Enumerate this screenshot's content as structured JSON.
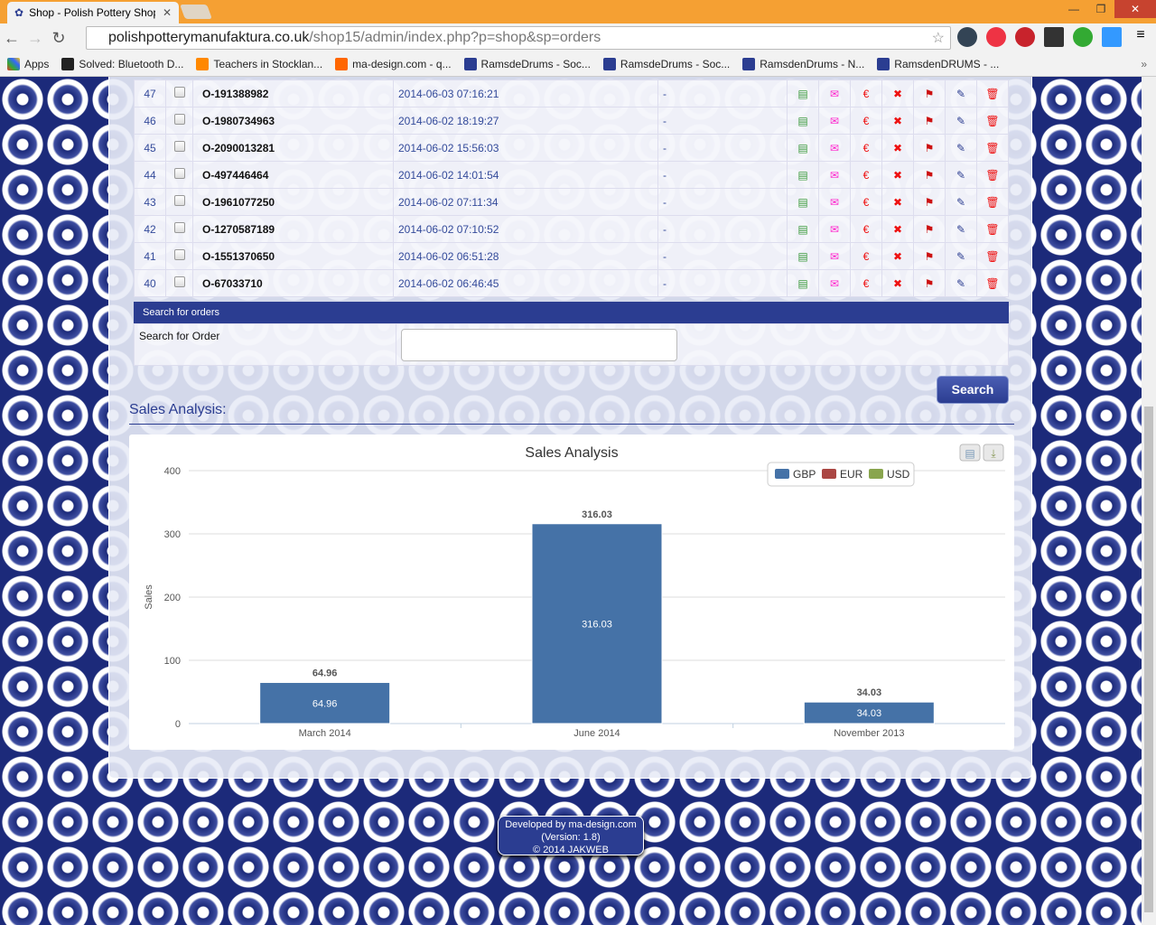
{
  "browser": {
    "tab_title": "Shop - Polish Pottery Shop",
    "url_host": "polishpotterymanufaktura.co.uk",
    "url_path": "/shop15/admin/index.php?p=shop&sp=orders",
    "bookmarks": [
      {
        "label": "Apps",
        "icon": "apps-grid"
      },
      {
        "label": "Solved: Bluetooth D...",
        "icon": "g-logo"
      },
      {
        "label": "Teachers in Stocklan...",
        "icon": "checkbox-logo"
      },
      {
        "label": "ma-design.com - q...",
        "icon": "orange-logo"
      },
      {
        "label": "RamsdeDrums - Soc...",
        "icon": "flower-logo"
      },
      {
        "label": "RamsdeDrums - Soc...",
        "icon": "flower-logo"
      },
      {
        "label": "RamsdenDrums - N...",
        "icon": "flower-logo"
      },
      {
        "label": "RamsdenDRUMS - ...",
        "icon": "flower-logo"
      }
    ],
    "more": "»"
  },
  "orders": [
    {
      "id": "47",
      "number": "O-191388982",
      "date": "2014-06-03 07:16:21",
      "note": "-"
    },
    {
      "id": "46",
      "number": "O-1980734963",
      "date": "2014-06-02 18:19:27",
      "note": "-"
    },
    {
      "id": "45",
      "number": "O-2090013281",
      "date": "2014-06-02 15:56:03",
      "note": "-"
    },
    {
      "id": "44",
      "number": "O-497446464",
      "date": "2014-06-02 14:01:54",
      "note": "-"
    },
    {
      "id": "43",
      "number": "O-1961077250",
      "date": "2014-06-02 07:11:34",
      "note": "-"
    },
    {
      "id": "42",
      "number": "O-1270587189",
      "date": "2014-06-02 07:10:52",
      "note": "-"
    },
    {
      "id": "41",
      "number": "O-1551370650",
      "date": "2014-06-02 06:51:28",
      "note": "-"
    },
    {
      "id": "40",
      "number": "O-67033710",
      "date": "2014-06-02 06:46:45",
      "note": "-"
    }
  ],
  "row_actions": [
    {
      "name": "invoice-icon",
      "glyph": "▤",
      "color": "#3a9a3a"
    },
    {
      "name": "email-icon",
      "glyph": "✉",
      "color": "#ff22cc"
    },
    {
      "name": "euro-icon",
      "glyph": "€",
      "color": "#ee1111"
    },
    {
      "name": "cancel-icon",
      "glyph": "✖",
      "color": "#ee1111"
    },
    {
      "name": "ups-icon",
      "glyph": "⚑",
      "color": "#cc1111"
    },
    {
      "name": "edit-pencil-icon",
      "glyph": "✎",
      "color": "#2b3d91"
    },
    {
      "name": "delete-trash-icon",
      "glyph": "🗑",
      "color": "#ee1111"
    }
  ],
  "search": {
    "header": "Search for orders",
    "label": "Search for Order",
    "value": "",
    "placeholder": "",
    "button": "Search"
  },
  "sales_heading": "Sales Analysis:",
  "chart_data": {
    "type": "bar",
    "title": "Sales Analysis",
    "ylabel": "Sales",
    "ylim": [
      0,
      400
    ],
    "yticks": [
      0,
      100,
      200,
      300,
      400
    ],
    "grid": true,
    "legend": "top-right",
    "categories": [
      "March 2014",
      "June 2014",
      "November 2013"
    ],
    "series": [
      {
        "name": "GBP",
        "color": "#4572a7",
        "values": [
          64.96,
          316.03,
          34.03
        ]
      },
      {
        "name": "EUR",
        "color": "#aa4643",
        "values": [
          null,
          null,
          null
        ]
      },
      {
        "name": "USD",
        "color": "#89a54e",
        "values": [
          null,
          null,
          null
        ]
      }
    ]
  },
  "chart_buttons": {
    "print": "print-icon",
    "download": "download-icon"
  },
  "footer": {
    "line1": "Developed by ma-design.com",
    "line2": "(Version: 1.8)",
    "line3": "© 2014 JAKWEB"
  }
}
